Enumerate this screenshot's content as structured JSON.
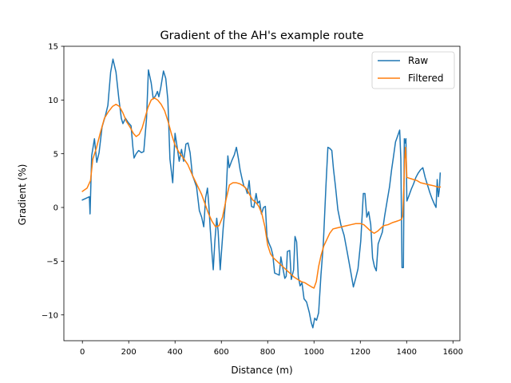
{
  "chart_data": {
    "type": "line",
    "title": "Gradient of the AH's example route",
    "xlabel": "Distance (m)",
    "ylabel": "Gradient (%)",
    "xlim": [
      -80,
      1630
    ],
    "ylim": [
      -12.4,
      15
    ],
    "xticks": [
      0,
      200,
      400,
      600,
      800,
      1000,
      1200,
      1400,
      1600
    ],
    "yticks": [
      -10,
      -5,
      0,
      5,
      10,
      15
    ],
    "xtick_labels": [
      "0",
      "200",
      "400",
      "600",
      "800",
      "1000",
      "1200",
      "1400",
      "1600"
    ],
    "ytick_labels": [
      "−10",
      "−5",
      "0",
      "5",
      "10",
      "15"
    ],
    "legend_position": "top-right",
    "grid": false,
    "series": [
      {
        "name": "Raw",
        "color": "#1f77b4",
        "points": [
          [
            0,
            0.7
          ],
          [
            20,
            0.9
          ],
          [
            30,
            1.0
          ],
          [
            33,
            -0.6
          ],
          [
            40,
            4.8
          ],
          [
            52,
            6.4
          ],
          [
            62,
            4.2
          ],
          [
            72,
            5.1
          ],
          [
            85,
            7.5
          ],
          [
            100,
            8.6
          ],
          [
            110,
            9.5
          ],
          [
            122,
            12.6
          ],
          [
            132,
            13.8
          ],
          [
            145,
            12.6
          ],
          [
            157,
            10.2
          ],
          [
            168,
            8.3
          ],
          [
            175,
            7.8
          ],
          [
            186,
            8.3
          ],
          [
            198,
            7.9
          ],
          [
            210,
            7.6
          ],
          [
            218,
            5.6
          ],
          [
            223,
            4.6
          ],
          [
            232,
            5.0
          ],
          [
            243,
            5.3
          ],
          [
            255,
            5.1
          ],
          [
            265,
            5.2
          ],
          [
            277,
            8.3
          ],
          [
            285,
            12.8
          ],
          [
            297,
            11.6
          ],
          [
            306,
            10.1
          ],
          [
            316,
            10.4
          ],
          [
            324,
            10.8
          ],
          [
            330,
            10.3
          ],
          [
            338,
            11.1
          ],
          [
            350,
            12.7
          ],
          [
            360,
            12.0
          ],
          [
            369,
            10.0
          ],
          [
            378,
            4.5
          ],
          [
            390,
            2.3
          ],
          [
            400,
            6.9
          ],
          [
            410,
            5.5
          ],
          [
            418,
            4.3
          ],
          [
            428,
            5.4
          ],
          [
            437,
            4.3
          ],
          [
            447,
            5.9
          ],
          [
            456,
            6.0
          ],
          [
            465,
            5.1
          ],
          [
            475,
            3.0
          ],
          [
            482,
            2.6
          ],
          [
            493,
            1.9
          ],
          [
            505,
            -0.3
          ],
          [
            515,
            -0.9
          ],
          [
            524,
            -1.8
          ],
          [
            532,
            0.9
          ],
          [
            540,
            1.8
          ],
          [
            546,
            0.2
          ],
          [
            552,
            -2.0
          ],
          [
            560,
            -4.4
          ],
          [
            565,
            -5.8
          ],
          [
            572,
            -3.1
          ],
          [
            580,
            -1.0
          ],
          [
            586,
            -2.2
          ],
          [
            595,
            -5.8
          ],
          [
            608,
            -1.9
          ],
          [
            620,
            1.0
          ],
          [
            628,
            4.8
          ],
          [
            634,
            3.7
          ],
          [
            644,
            4.3
          ],
          [
            656,
            4.9
          ],
          [
            665,
            5.6
          ],
          [
            674,
            4.5
          ],
          [
            681,
            3.5
          ],
          [
            690,
            2.6
          ],
          [
            697,
            2.0
          ],
          [
            705,
            1.8
          ],
          [
            712,
            1.3
          ],
          [
            720,
            2.5
          ],
          [
            730,
            0.1
          ],
          [
            740,
            0.0
          ],
          [
            750,
            1.3
          ],
          [
            757,
            0.4
          ],
          [
            765,
            0.6
          ],
          [
            773,
            -0.6
          ],
          [
            782,
            0.0
          ],
          [
            790,
            0.1
          ],
          [
            797,
            -2.7
          ],
          [
            805,
            -3.3
          ],
          [
            815,
            -3.8
          ],
          [
            822,
            -4.4
          ],
          [
            830,
            -6.1
          ],
          [
            840,
            -6.2
          ],
          [
            850,
            -6.3
          ],
          [
            857,
            -4.6
          ],
          [
            866,
            -5.7
          ],
          [
            874,
            -6.6
          ],
          [
            880,
            -6.4
          ],
          [
            885,
            -4.1
          ],
          [
            895,
            -4.0
          ],
          [
            902,
            -6.7
          ],
          [
            912,
            -5.8
          ],
          [
            918,
            -2.7
          ],
          [
            925,
            -3.2
          ],
          [
            932,
            -6.4
          ],
          [
            940,
            -7.3
          ],
          [
            948,
            -7.0
          ],
          [
            957,
            -8.5
          ],
          [
            968,
            -8.8
          ],
          [
            980,
            -9.8
          ],
          [
            988,
            -10.7
          ],
          [
            995,
            -11.2
          ],
          [
            1003,
            -10.3
          ],
          [
            1011,
            -10.5
          ],
          [
            1020,
            -9.8
          ],
          [
            1030,
            -6.3
          ],
          [
            1040,
            -3.5
          ],
          [
            1052,
            2.2
          ],
          [
            1060,
            5.6
          ],
          [
            1068,
            5.5
          ],
          [
            1077,
            5.3
          ],
          [
            1084,
            3.6
          ],
          [
            1093,
            1.9
          ],
          [
            1103,
            -0.2
          ],
          [
            1116,
            -1.6
          ],
          [
            1130,
            -2.6
          ],
          [
            1143,
            -4.1
          ],
          [
            1158,
            -5.9
          ],
          [
            1170,
            -7.4
          ],
          [
            1180,
            -6.6
          ],
          [
            1190,
            -5.7
          ],
          [
            1202,
            -3.1
          ],
          [
            1213,
            1.3
          ],
          [
            1220,
            1.3
          ],
          [
            1228,
            -0.9
          ],
          [
            1236,
            -0.4
          ],
          [
            1245,
            -1.6
          ],
          [
            1253,
            -4.7
          ],
          [
            1261,
            -5.5
          ],
          [
            1269,
            -5.9
          ],
          [
            1277,
            -3.4
          ],
          [
            1285,
            -2.9
          ],
          [
            1295,
            -2.3
          ],
          [
            1305,
            -0.8
          ],
          [
            1315,
            0.5
          ],
          [
            1326,
            1.9
          ],
          [
            1335,
            3.5
          ],
          [
            1343,
            4.7
          ],
          [
            1352,
            6.1
          ],
          [
            1362,
            6.7
          ],
          [
            1370,
            7.2
          ],
          [
            1375,
            4.5
          ],
          [
            1380,
            -5.6
          ],
          [
            1386,
            -5.6
          ],
          [
            1390,
            6.4
          ],
          [
            1393,
            6.0
          ],
          [
            1397,
            6.4
          ],
          [
            1401,
            0.6
          ],
          [
            1410,
            1.1
          ],
          [
            1420,
            1.7
          ],
          [
            1430,
            2.2
          ],
          [
            1440,
            2.8
          ],
          [
            1450,
            3.2
          ],
          [
            1460,
            3.5
          ],
          [
            1470,
            3.7
          ],
          [
            1480,
            2.8
          ],
          [
            1490,
            2.1
          ],
          [
            1500,
            1.4
          ],
          [
            1510,
            0.8
          ],
          [
            1520,
            0.3
          ],
          [
            1527,
            0.0
          ],
          [
            1532,
            2.6
          ],
          [
            1537,
            1.0
          ],
          [
            1541,
            1.6
          ],
          [
            1545,
            3.2
          ]
        ]
      },
      {
        "name": "Filtered",
        "color": "#ff7f0e",
        "points": [
          [
            0,
            1.5
          ],
          [
            20,
            1.8
          ],
          [
            35,
            2.5
          ],
          [
            45,
            4.5
          ],
          [
            60,
            5.5
          ],
          [
            78,
            7.0
          ],
          [
            95,
            8.3
          ],
          [
            112,
            8.9
          ],
          [
            130,
            9.4
          ],
          [
            145,
            9.6
          ],
          [
            160,
            9.4
          ],
          [
            175,
            8.8
          ],
          [
            190,
            8.0
          ],
          [
            205,
            7.5
          ],
          [
            220,
            6.9
          ],
          [
            232,
            6.6
          ],
          [
            245,
            6.8
          ],
          [
            258,
            7.4
          ],
          [
            270,
            8.3
          ],
          [
            283,
            9.3
          ],
          [
            297,
            10.0
          ],
          [
            310,
            10.2
          ],
          [
            325,
            10.0
          ],
          [
            340,
            9.6
          ],
          [
            355,
            9.0
          ],
          [
            370,
            8.0
          ],
          [
            385,
            6.8
          ],
          [
            400,
            5.8
          ],
          [
            418,
            5.1
          ],
          [
            436,
            4.6
          ],
          [
            455,
            4.0
          ],
          [
            475,
            3.0
          ],
          [
            495,
            2.1
          ],
          [
            515,
            1.2
          ],
          [
            530,
            0.3
          ],
          [
            545,
            -0.6
          ],
          [
            560,
            -1.3
          ],
          [
            575,
            -1.8
          ],
          [
            590,
            -1.7
          ],
          [
            605,
            -0.9
          ],
          [
            620,
            0.7
          ],
          [
            635,
            2.1
          ],
          [
            650,
            2.3
          ],
          [
            665,
            2.3
          ],
          [
            680,
            2.2
          ],
          [
            695,
            2.0
          ],
          [
            710,
            1.7
          ],
          [
            722,
            1.2
          ],
          [
            735,
            0.7
          ],
          [
            748,
            0.5
          ],
          [
            762,
            0.1
          ],
          [
            775,
            -0.6
          ],
          [
            788,
            -1.8
          ],
          [
            800,
            -3.5
          ],
          [
            812,
            -4.3
          ],
          [
            825,
            -4.7
          ],
          [
            840,
            -5.0
          ],
          [
            855,
            -5.3
          ],
          [
            870,
            -5.6
          ],
          [
            885,
            -5.9
          ],
          [
            900,
            -6.2
          ],
          [
            915,
            -6.5
          ],
          [
            930,
            -6.7
          ],
          [
            945,
            -6.9
          ],
          [
            960,
            -7.0
          ],
          [
            975,
            -7.2
          ],
          [
            990,
            -7.4
          ],
          [
            1000,
            -7.5
          ],
          [
            1010,
            -6.9
          ],
          [
            1020,
            -5.5
          ],
          [
            1030,
            -4.5
          ],
          [
            1042,
            -3.6
          ],
          [
            1055,
            -3.0
          ],
          [
            1068,
            -2.4
          ],
          [
            1082,
            -2.0
          ],
          [
            1100,
            -1.9
          ],
          [
            1120,
            -1.8
          ],
          [
            1140,
            -1.7
          ],
          [
            1160,
            -1.6
          ],
          [
            1180,
            -1.5
          ],
          [
            1200,
            -1.5
          ],
          [
            1215,
            -1.6
          ],
          [
            1230,
            -1.9
          ],
          [
            1245,
            -2.2
          ],
          [
            1260,
            -2.4
          ],
          [
            1275,
            -2.2
          ],
          [
            1290,
            -1.9
          ],
          [
            1300,
            -1.7
          ],
          [
            1320,
            -1.6
          ],
          [
            1340,
            -1.4
          ],
          [
            1355,
            -1.3
          ],
          [
            1368,
            -1.2
          ],
          [
            1378,
            -1.1
          ],
          [
            1383,
            -0.8
          ],
          [
            1388,
            2.0
          ],
          [
            1392,
            4.5
          ],
          [
            1395,
            5.6
          ],
          [
            1398,
            4.5
          ],
          [
            1401,
            2.8
          ],
          [
            1415,
            2.7
          ],
          [
            1430,
            2.6
          ],
          [
            1445,
            2.5
          ],
          [
            1460,
            2.3
          ],
          [
            1480,
            2.2
          ],
          [
            1500,
            2.1
          ],
          [
            1520,
            2.0
          ],
          [
            1535,
            1.9
          ],
          [
            1545,
            1.9
          ]
        ]
      }
    ]
  }
}
